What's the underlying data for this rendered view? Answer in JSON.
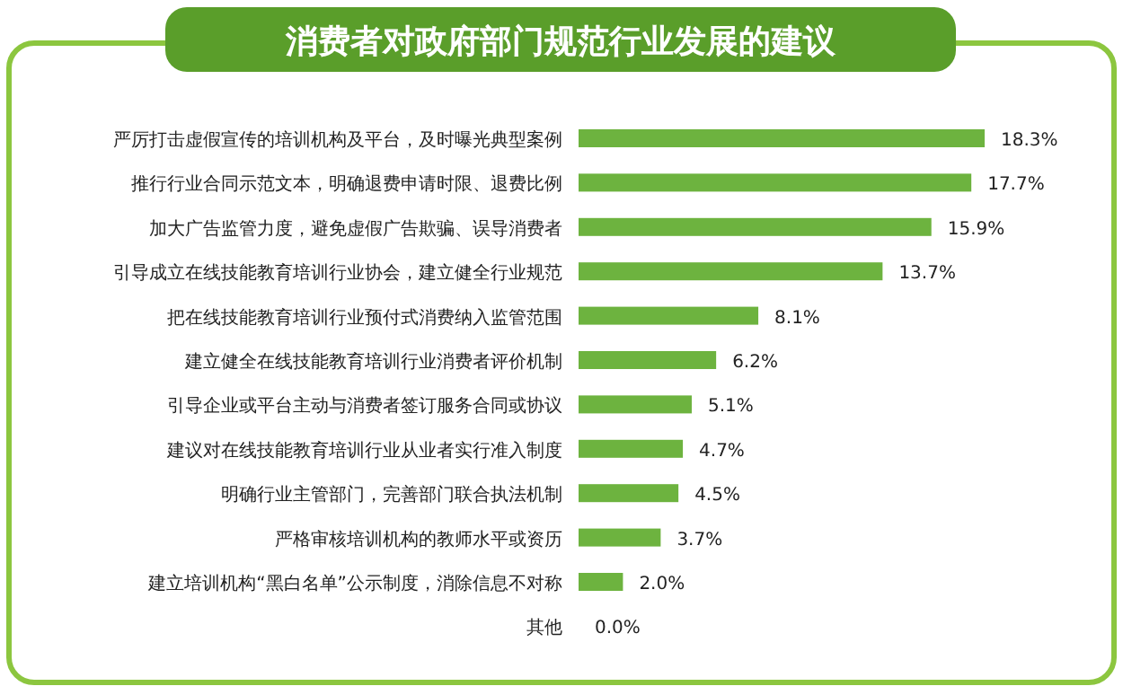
{
  "chart_data": {
    "type": "bar",
    "orientation": "horizontal",
    "title": "消费者对政府部门规范行业发展的建议",
    "color": "#6db33f",
    "categories": [
      "严厉打击虚假宣传的培训机构及平台，及时曝光典型案例",
      "推行行业合同示范文本，明确退费申请时限、退费比例",
      "加大广告监管力度，避免虚假广告欺骗、误导消费者",
      "引导成立在线技能教育培训行业协会，建立健全行业规范",
      "把在线技能教育培训行业预付式消费纳入监管范围",
      "建立健全在线技能教育培训行业消费者评价机制",
      "引导企业或平台主动与消费者签订服务合同或协议",
      "建议对在线技能教育培训行业从业者实行准入制度",
      "明确行业主管部门，完善部门联合执法机制",
      "严格审核培训机构的教师水平或资历",
      "建立培训机构“黑白名单”公示制度，消除信息不对称",
      "其他"
    ],
    "values": [
      18.3,
      17.7,
      15.9,
      13.7,
      8.1,
      6.2,
      5.1,
      4.7,
      4.5,
      3.7,
      2.0,
      0.0
    ],
    "value_labels": [
      "18.3%",
      "17.7%",
      "15.9%",
      "13.7%",
      "8.1%",
      "6.2%",
      "5.1%",
      "4.7%",
      "4.5%",
      "3.7%",
      "2.0%",
      "0.0%"
    ]
  }
}
